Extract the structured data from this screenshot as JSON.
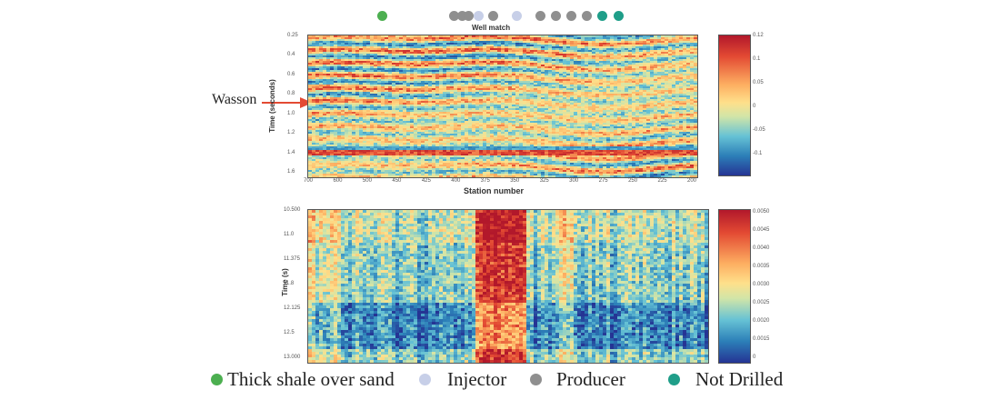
{
  "title": "",
  "wells": [
    {
      "type": "thick_shale",
      "color": "#4caf50",
      "x": 415
    },
    {
      "type": "producer",
      "color": "#8f8f8f",
      "x": 494
    },
    {
      "type": "producer",
      "color": "#8f8f8f",
      "x": 503
    },
    {
      "type": "producer",
      "color": "#8f8f8f",
      "x": 510
    },
    {
      "type": "injector",
      "color": "#c7cfe8",
      "x": 521
    },
    {
      "type": "producer",
      "color": "#8f8f8f",
      "x": 537
    },
    {
      "type": "injector",
      "color": "#c7cfe8",
      "x": 563
    },
    {
      "type": "producer",
      "color": "#8f8f8f",
      "x": 589
    },
    {
      "type": "producer",
      "color": "#8f8f8f",
      "x": 606
    },
    {
      "type": "producer",
      "color": "#8f8f8f",
      "x": 623
    },
    {
      "type": "producer",
      "color": "#8f8f8f",
      "x": 640
    },
    {
      "type": "not_drilled",
      "color": "#1f9e89",
      "x": 657
    },
    {
      "type": "not_drilled",
      "color": "#1f9e89",
      "x": 675
    }
  ],
  "annotation": "Wasson",
  "legend": [
    {
      "label": "Thick shale over sand",
      "color": "#4caf50"
    },
    {
      "label": "Injector",
      "color": "#c7cfe8"
    },
    {
      "label": "Producer",
      "color": "#8f8f8f"
    },
    {
      "label": "Not Drilled",
      "color": "#1f9e89"
    }
  ],
  "chart_data": [
    {
      "type": "heatmap",
      "title": "Well match",
      "xlabel": "Station number",
      "ylabel": "Time (seconds)",
      "x_ticks": [
        "700",
        "600",
        "500",
        "450",
        "425",
        "400",
        "375",
        "350",
        "325",
        "300",
        "275",
        "250",
        "225",
        "200"
      ],
      "y_ticks": [
        "0.25",
        "0.4",
        "0.6",
        "0.8",
        "1.0",
        "1.2",
        "1.4",
        "1.6"
      ],
      "colorbar_ticks": [
        "0.12",
        "0.1",
        "0.05",
        "0",
        "-0.05",
        "-0.1"
      ],
      "colorscale": "jet"
    },
    {
      "type": "heatmap",
      "title": "",
      "xlabel": "",
      "ylabel": "Time (s)",
      "y_ticks": [
        "10.500",
        "11.0",
        "11.375",
        "11.8",
        "12.125",
        "12.5",
        "13.000"
      ],
      "colorbar_ticks": [
        "0.0050",
        "0.0045",
        "0.0040",
        "0.0035",
        "0.0030",
        "0.0025",
        "0.0020",
        "0.0015",
        "0"
      ],
      "colorscale": "jet",
      "high_value_x_fraction": [
        0.41,
        0.54
      ]
    }
  ]
}
